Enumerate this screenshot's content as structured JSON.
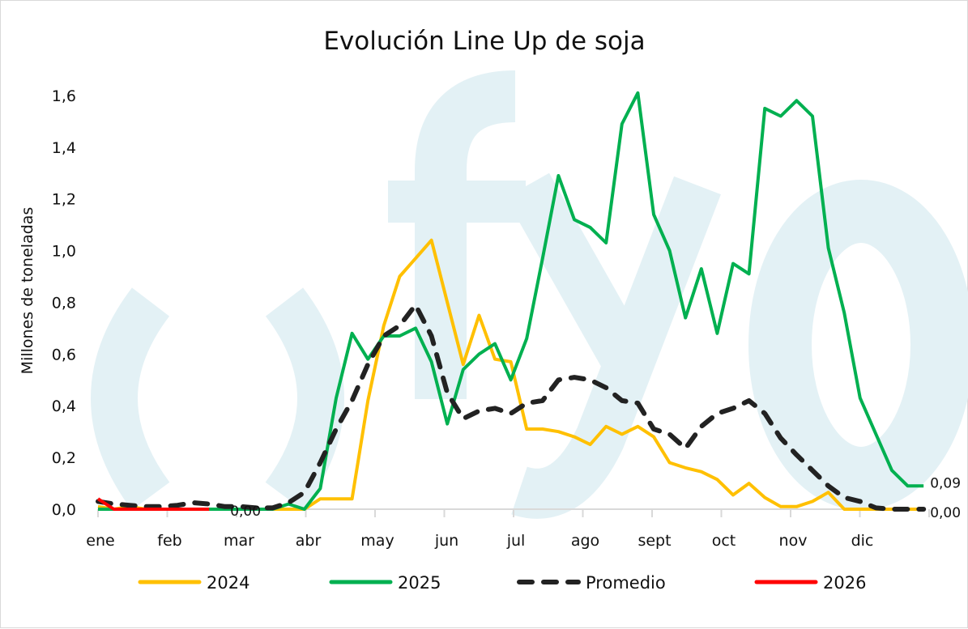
{
  "chart_data": {
    "type": "line",
    "title": "Evolución Line Up de soja",
    "xlabel": "",
    "ylabel": "Millones de toneladas",
    "ylim": [
      0,
      1.6
    ],
    "yticks": [
      "0,0",
      "0,2",
      "0,4",
      "0,6",
      "0,8",
      "1,0",
      "1,2",
      "1,4",
      "1,6"
    ],
    "x_tick_labels": [
      "ene",
      "feb",
      "mar",
      "abr",
      "may",
      "jun",
      "jul",
      "ago",
      "sept",
      "oct",
      "nov",
      "dic"
    ],
    "x_unit": "weekly",
    "grid": false,
    "legend_position": "bottom",
    "series": [
      {
        "name": "2024",
        "color": "#FFC000",
        "dash": false,
        "values": [
          0.01,
          0,
          0.01,
          0,
          0,
          0,
          0,
          0,
          0,
          0,
          0,
          0,
          0,
          0,
          0.04,
          0.04,
          0.04,
          0.42,
          0.71,
          0.9,
          0.97,
          1.04,
          0.8,
          0.56,
          0.75,
          0.58,
          0.57,
          0.31,
          0.31,
          0.3,
          0.28,
          0.25,
          0.32,
          0.29,
          0.32,
          0.28,
          0.18,
          0.16,
          0.145,
          0.115,
          0.055,
          0.1,
          0.045,
          0.01,
          0.01,
          0.03,
          0.065,
          0,
          0,
          0,
          0,
          0,
          0
        ]
      },
      {
        "name": "2025",
        "color": "#00B050",
        "dash": false,
        "values": [
          0,
          0,
          0,
          0,
          0,
          0,
          0,
          0,
          0,
          0,
          0,
          0,
          0.02,
          0,
          0.08,
          0.43,
          0.68,
          0.58,
          0.67,
          0.67,
          0.7,
          0.57,
          0.33,
          0.54,
          0.6,
          0.64,
          0.5,
          0.66,
          0.97,
          1.29,
          1.12,
          1.09,
          1.03,
          1.49,
          1.61,
          1.14,
          1.0,
          0.74,
          0.93,
          0.68,
          0.95,
          0.91,
          1.55,
          1.52,
          1.58,
          1.52,
          1.01,
          0.76,
          0.43,
          0.29,
          0.15,
          0.09,
          0.09
        ]
      },
      {
        "name": "Promedio",
        "color": "#222222",
        "dash": true,
        "values": [
          0.03,
          0.02,
          0.015,
          0.01,
          0.01,
          0.015,
          0.025,
          0.02,
          0.01,
          0.01,
          0.005,
          0.005,
          0.025,
          0.065,
          0.18,
          0.31,
          0.42,
          0.56,
          0.67,
          0.71,
          0.79,
          0.67,
          0.45,
          0.35,
          0.38,
          0.39,
          0.37,
          0.41,
          0.42,
          0.5,
          0.51,
          0.5,
          0.47,
          0.42,
          0.41,
          0.31,
          0.29,
          0.235,
          0.32,
          0.37,
          0.39,
          0.42,
          0.37,
          0.275,
          0.21,
          0.15,
          0.09,
          0.045,
          0.03,
          0.005,
          0,
          0,
          0
        ]
      },
      {
        "name": "2026",
        "color": "#FF0000",
        "dash": false,
        "values": [
          0.04,
          0,
          0,
          0,
          0,
          0,
          0,
          0
        ]
      }
    ],
    "data_labels": [
      {
        "series": "2026",
        "text": "0,00"
      },
      {
        "series": "2025",
        "text": "0,09"
      },
      {
        "series": "Promedio",
        "text": "0,00"
      }
    ]
  },
  "watermark": {
    "text": "(fyo)",
    "color": "#E3F1F5"
  }
}
